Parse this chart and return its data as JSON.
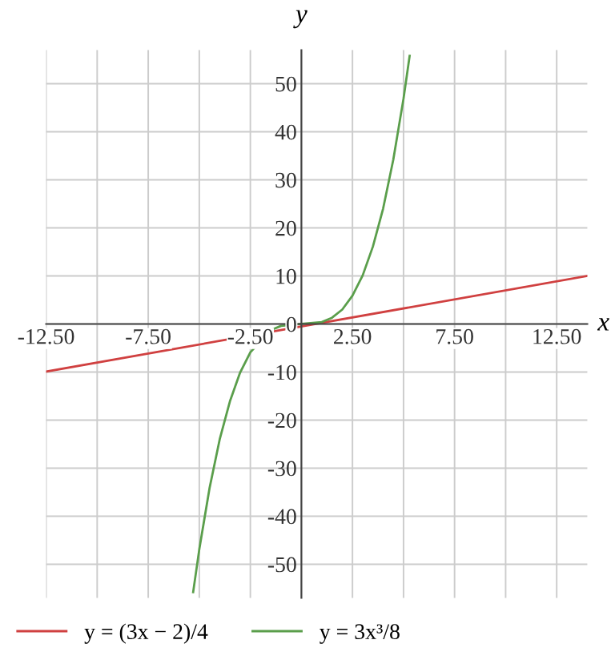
{
  "chart_data": {
    "type": "line",
    "xlabel": "x",
    "ylabel": "y",
    "xlim": [
      -12.5,
      14
    ],
    "ylim": [
      -57,
      57
    ],
    "xticks": [
      {
        "value": -12.5,
        "label": "-12.50"
      },
      {
        "value": -10,
        "label": null
      },
      {
        "value": -7.5,
        "label": "-7.50"
      },
      {
        "value": -5,
        "label": null
      },
      {
        "value": -2.5,
        "label": "-2.50"
      },
      {
        "value": 2.5,
        "label": "2.50"
      },
      {
        "value": 5,
        "label": null
      },
      {
        "value": 7.5,
        "label": "7.50"
      },
      {
        "value": 10,
        "label": null
      },
      {
        "value": 12.5,
        "label": "12.50"
      }
    ],
    "yticks": [
      {
        "value": -50,
        "label": "-50"
      },
      {
        "value": -40,
        "label": "-40"
      },
      {
        "value": -30,
        "label": "-30"
      },
      {
        "value": -20,
        "label": "-20"
      },
      {
        "value": -10,
        "label": "-10"
      },
      0,
      10,
      20,
      30,
      40,
      50
    ],
    "grid": true,
    "legend": "bottom",
    "marker": "none",
    "line_style": "solid",
    "series": [
      {
        "name": "y = (3x − 2)/4",
        "color": "#d04040",
        "x": [
          -12.5,
          14
        ],
        "values": [
          -9.9,
          10
        ]
      },
      {
        "name": "y = 3x³/8",
        "color": "#5a9e4b",
        "x": [
          -5.3,
          -5,
          -4.5,
          -4,
          -3.5,
          -3,
          -2.5,
          -1.5,
          -1,
          0,
          1,
          1.5,
          2,
          2.5,
          3,
          3.5,
          4,
          4.5,
          5,
          5.3
        ],
        "values": [
          -55.8,
          -46.9,
          -34.2,
          -24,
          -16.1,
          -10.1,
          -5.9,
          -1.3,
          -0.4,
          0,
          0.4,
          1.3,
          3,
          5.9,
          10.1,
          16.1,
          24,
          34.2,
          46.9,
          55.8
        ]
      }
    ]
  }
}
